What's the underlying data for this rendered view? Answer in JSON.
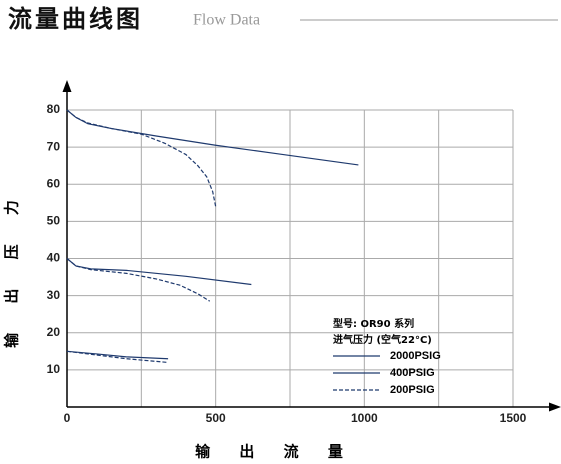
{
  "chart_data": {
    "type": "line",
    "title": "流量曲线图",
    "subtitle": "Flow Data",
    "ylabel": "输 出 压 力",
    "xlabel": "输 出 流 量",
    "xlim": [
      0,
      1500
    ],
    "xticks": [
      0,
      500,
      1000,
      1500
    ],
    "xgrid": [
      250,
      500,
      750,
      1000,
      1250,
      1500
    ],
    "ylim": [
      0,
      80
    ],
    "yticks": [
      10,
      20,
      30,
      40,
      50,
      60,
      70,
      80
    ],
    "grid": true,
    "legend_title": [
      "型号: OR90 系列",
      "进气压力 (空气22°C)"
    ],
    "legend": [
      {
        "label": "2000PSIG",
        "style": "solid"
      },
      {
        "label": "400PSIG",
        "style": "solid"
      },
      {
        "label": "200PSIG",
        "style": "dashed"
      }
    ],
    "color": "#1f3a6e",
    "series": [
      {
        "style": "solid",
        "x": [
          0,
          30,
          70,
          150,
          300,
          500,
          700,
          980
        ],
        "values": [
          80,
          78,
          76.3,
          75,
          73,
          70.5,
          68.3,
          65.2
        ]
      },
      {
        "style": "dashed",
        "x": [
          0,
          30,
          70,
          150,
          250,
          330,
          400,
          440,
          470,
          490,
          500
        ],
        "values": [
          80,
          78,
          76.5,
          75,
          73.5,
          71,
          68,
          65,
          62,
          58,
          54
        ]
      },
      {
        "style": "solid",
        "x": [
          0,
          30,
          80,
          200,
          400,
          620
        ],
        "values": [
          40,
          38,
          37.2,
          36.8,
          35.2,
          33
        ]
      },
      {
        "style": "dashed",
        "x": [
          0,
          30,
          80,
          200,
          300,
          380,
          440,
          480
        ],
        "values": [
          40,
          38,
          37,
          36,
          34.5,
          32.8,
          30.5,
          28.5
        ]
      },
      {
        "style": "solid",
        "x": [
          0,
          100,
          200,
          340
        ],
        "values": [
          15,
          14.3,
          13.5,
          13
        ]
      },
      {
        "style": "dashed",
        "x": [
          0,
          100,
          200,
          340
        ],
        "values": [
          15,
          14,
          13,
          12
        ]
      }
    ]
  }
}
